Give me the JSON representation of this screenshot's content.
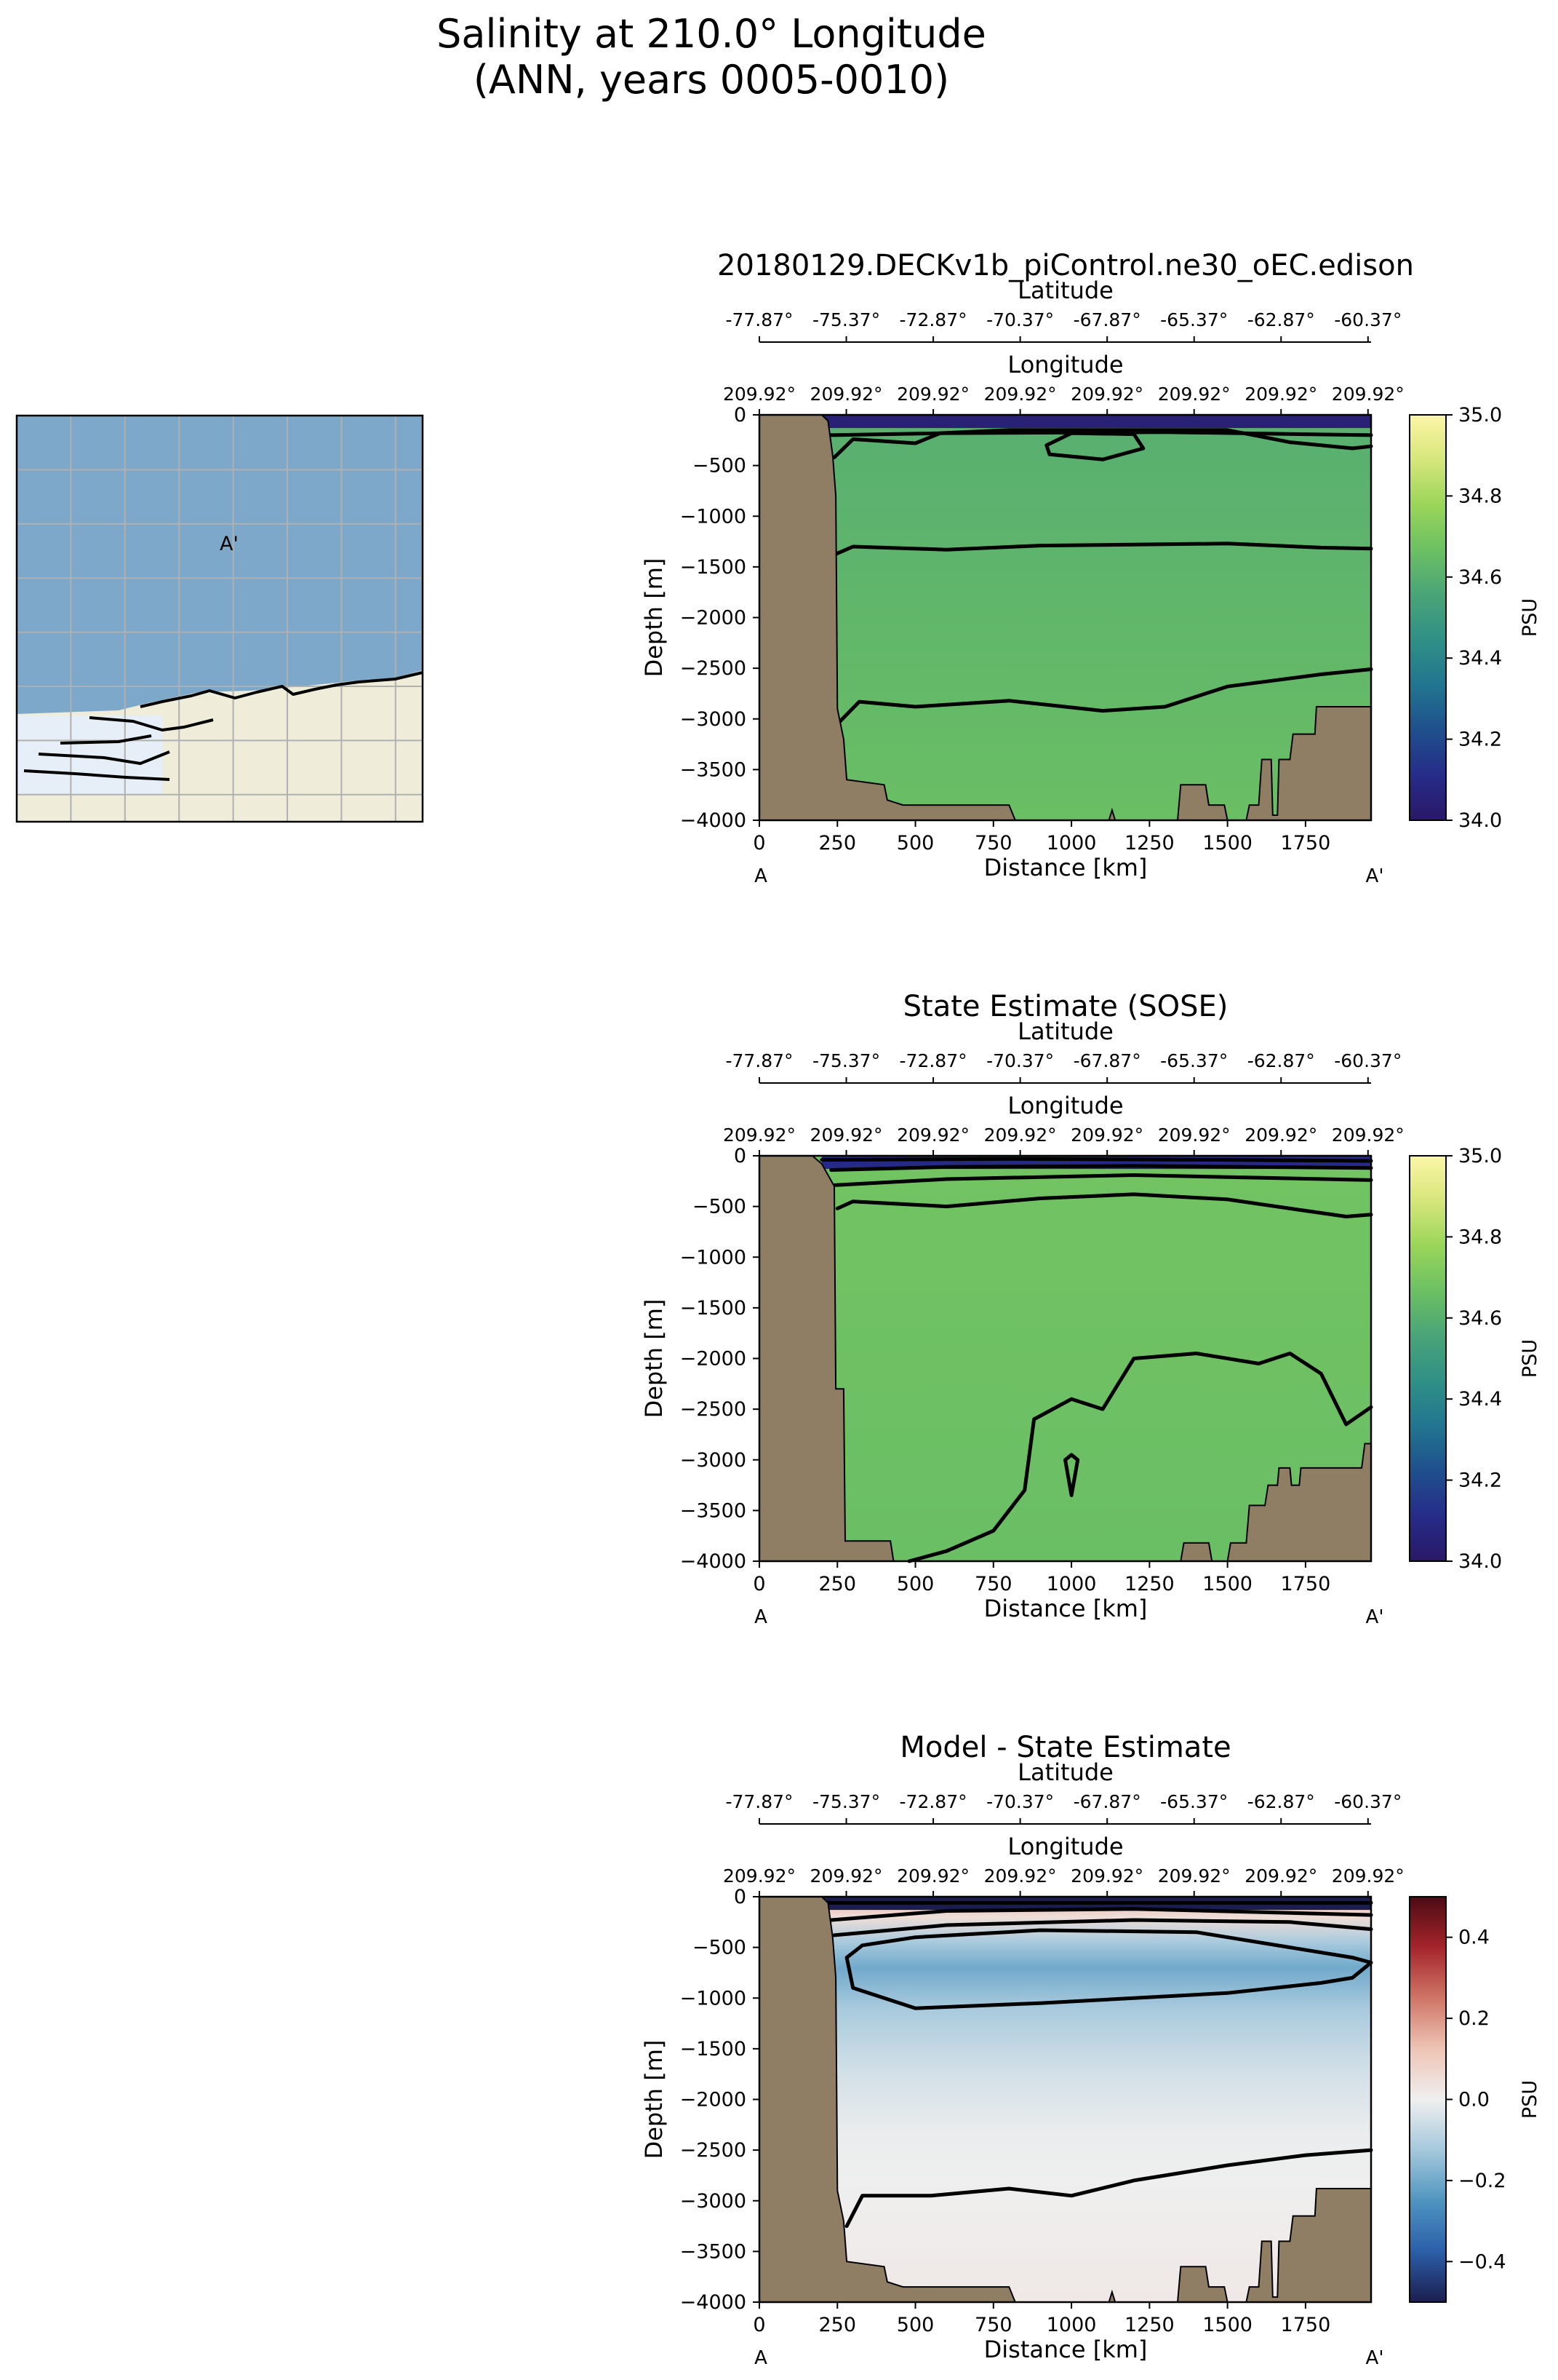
{
  "figure": {
    "suptitle_line1": "Salinity at 210.0° Longitude",
    "suptitle_line2": "(ANN, years 0005-0010)"
  },
  "inset_map": {
    "marker_label": "A'",
    "colors": {
      "ocean": "#7ea8c9",
      "land": "#efedda",
      "ice": "#e6eef8",
      "grid": "#b0b0b0"
    }
  },
  "colors": {
    "land_mask": "#8f7d64",
    "salinity_cmap": [
      "#2a1866",
      "#262c89",
      "#1f4f8c",
      "#227590",
      "#2f9086",
      "#4aa478",
      "#6cc063",
      "#9ad55a",
      "#d6e67a",
      "#fdf6a8"
    ],
    "diff_cmap": [
      "#1b1d4e",
      "#2b5fa8",
      "#4f95c0",
      "#a5c8dc",
      "#efefef",
      "#eec4b5",
      "#cf7566",
      "#a5252c",
      "#4d0a14"
    ]
  },
  "chart_data": [
    {
      "type": "heatmap",
      "title": "20180129.DECKv1b_piControl.ne30_oEC.edison",
      "xlabel": "Distance [km]",
      "ylabel": "Depth [m]",
      "top_axis_1_label": "Latitude",
      "top_axis_2_label": "Longitude",
      "colorbar_label": "PSU",
      "xlim": [
        0,
        1960
      ],
      "ylim": [
        -4000,
        0
      ],
      "x_ticks": [
        "0",
        "250",
        "500",
        "750",
        "1000",
        "1250",
        "1500",
        "1750"
      ],
      "y_ticks": [
        "0",
        "−500",
        "−1000",
        "−1500",
        "−2000",
        "−2500",
        "−3000",
        "−3500",
        "−4000"
      ],
      "latitude_ticks": [
        "-77.87°",
        "-75.37°",
        "-72.87°",
        "-70.37°",
        "-67.87°",
        "-65.37°",
        "-62.87°",
        "-60.37°"
      ],
      "longitude_ticks": [
        "209.92°",
        "209.92°",
        "209.92°",
        "209.92°",
        "209.92°",
        "209.92°",
        "209.92°",
        "209.92°"
      ],
      "endpoint_left": "A",
      "endpoint_right": "A'",
      "colorbar_range": [
        34.0,
        35.0
      ],
      "colorbar_ticks": [
        "34.0",
        "34.2",
        "34.4",
        "34.6",
        "34.8",
        "35.0"
      ],
      "fill_top": 34.6,
      "fill_bottom": 34.66,
      "surface_value": 34.05,
      "contours": [
        [
          [
            220,
            -200
          ],
          [
            600,
            -180
          ],
          [
            1300,
            -170
          ],
          [
            1960,
            -200
          ]
        ],
        [
          [
            240,
            -420
          ],
          [
            300,
            -240
          ],
          [
            500,
            -280
          ],
          [
            580,
            -180
          ],
          [
            800,
            -150
          ],
          [
            1500,
            -150
          ],
          [
            1700,
            -270
          ],
          [
            1900,
            -330
          ],
          [
            1960,
            -310
          ]
        ],
        [
          [
            920,
            -300
          ],
          [
            1000,
            -180
          ],
          [
            1200,
            -190
          ],
          [
            1230,
            -330
          ],
          [
            1100,
            -440
          ],
          [
            930,
            -390
          ],
          [
            920,
            -300
          ]
        ],
        [
          [
            240,
            -1380
          ],
          [
            300,
            -1300
          ],
          [
            600,
            -1330
          ],
          [
            900,
            -1290
          ],
          [
            1500,
            -1270
          ],
          [
            1800,
            -1310
          ],
          [
            1960,
            -1320
          ]
        ],
        [
          [
            250,
            -3050
          ],
          [
            320,
            -2830
          ],
          [
            500,
            -2880
          ],
          [
            800,
            -2820
          ],
          [
            1100,
            -2920
          ],
          [
            1300,
            -2880
          ],
          [
            1500,
            -2680
          ],
          [
            1800,
            -2560
          ],
          [
            1960,
            -2510
          ]
        ]
      ],
      "bathymetry": [
        [
          0,
          0
        ],
        [
          200,
          0
        ],
        [
          220,
          -60
        ],
        [
          235,
          -400
        ],
        [
          245,
          -800
        ],
        [
          250,
          -2900
        ],
        [
          270,
          -3200
        ],
        [
          280,
          -3600
        ],
        [
          400,
          -3650
        ],
        [
          410,
          -3800
        ],
        [
          460,
          -3850
        ],
        [
          800,
          -3850
        ],
        [
          820,
          -4000
        ],
        [
          1120,
          -4000
        ],
        [
          1130,
          -3900
        ],
        [
          1140,
          -4000
        ],
        [
          1340,
          -4000
        ],
        [
          1350,
          -3650
        ],
        [
          1430,
          -3650
        ],
        [
          1440,
          -3850
        ],
        [
          1490,
          -3850
        ],
        [
          1500,
          -4000
        ],
        [
          1560,
          -4000
        ],
        [
          1570,
          -3850
        ],
        [
          1600,
          -3850
        ],
        [
          1610,
          -3400
        ],
        [
          1640,
          -3400
        ],
        [
          1645,
          -3950
        ],
        [
          1660,
          -3950
        ],
        [
          1665,
          -3400
        ],
        [
          1700,
          -3400
        ],
        [
          1710,
          -3150
        ],
        [
          1780,
          -3150
        ],
        [
          1785,
          -2880
        ],
        [
          1960,
          -2880
        ],
        [
          1960,
          -4000
        ],
        [
          0,
          -4000
        ]
      ]
    },
    {
      "type": "heatmap",
      "title": "State Estimate (SOSE)",
      "xlabel": "Distance [km]",
      "ylabel": "Depth [m]",
      "top_axis_1_label": "Latitude",
      "top_axis_2_label": "Longitude",
      "colorbar_label": "PSU",
      "xlim": [
        0,
        1960
      ],
      "ylim": [
        -4000,
        0
      ],
      "x_ticks": [
        "0",
        "250",
        "500",
        "750",
        "1000",
        "1250",
        "1500",
        "1750"
      ],
      "y_ticks": [
        "0",
        "−500",
        "−1000",
        "−1500",
        "−2000",
        "−2500",
        "−3000",
        "−3500",
        "−4000"
      ],
      "latitude_ticks": [
        "-77.87°",
        "-75.37°",
        "-72.87°",
        "-70.37°",
        "-67.87°",
        "-65.37°",
        "-62.87°",
        "-60.37°"
      ],
      "longitude_ticks": [
        "209.92°",
        "209.92°",
        "209.92°",
        "209.92°",
        "209.92°",
        "209.92°",
        "209.92°",
        "209.92°"
      ],
      "endpoint_left": "A",
      "endpoint_right": "A'",
      "colorbar_range": [
        34.0,
        35.0
      ],
      "colorbar_ticks": [
        "34.0",
        "34.2",
        "34.4",
        "34.6",
        "34.8",
        "35.0"
      ],
      "fill_top": 34.68,
      "fill_bottom": 34.66,
      "surface_value": 34.1,
      "contours": [
        [
          [
            200,
            -40
          ],
          [
            800,
            -30
          ],
          [
            1500,
            -40
          ],
          [
            1960,
            -50
          ]
        ],
        [
          [
            230,
            -140
          ],
          [
            600,
            -110
          ],
          [
            1200,
            -100
          ],
          [
            1960,
            -120
          ]
        ],
        [
          [
            240,
            -290
          ],
          [
            600,
            -230
          ],
          [
            1200,
            -190
          ],
          [
            1960,
            -240
          ]
        ],
        [
          [
            250,
            -520
          ],
          [
            300,
            -450
          ],
          [
            600,
            -500
          ],
          [
            900,
            -420
          ],
          [
            1200,
            -380
          ],
          [
            1500,
            -430
          ],
          [
            1700,
            -520
          ],
          [
            1880,
            -600
          ],
          [
            1960,
            -580
          ]
        ],
        [
          [
            480,
            -4000
          ],
          [
            600,
            -3900
          ],
          [
            750,
            -3700
          ],
          [
            850,
            -3300
          ],
          [
            880,
            -2600
          ],
          [
            1000,
            -2400
          ],
          [
            1100,
            -2500
          ],
          [
            1160,
            -2200
          ],
          [
            1200,
            -2000
          ],
          [
            1400,
            -1950
          ],
          [
            1600,
            -2050
          ],
          [
            1700,
            -1950
          ],
          [
            1800,
            -2150
          ],
          [
            1880,
            -2650
          ],
          [
            1960,
            -2480
          ]
        ],
        [
          [
            980,
            -3000
          ],
          [
            1000,
            -3350
          ],
          [
            1020,
            -3000
          ],
          [
            1000,
            -2950
          ],
          [
            980,
            -3000
          ]
        ]
      ],
      "bathymetry": [
        [
          0,
          0
        ],
        [
          170,
          0
        ],
        [
          200,
          -80
        ],
        [
          240,
          -300
        ],
        [
          245,
          -2300
        ],
        [
          270,
          -2300
        ],
        [
          275,
          -3800
        ],
        [
          420,
          -3800
        ],
        [
          430,
          -4000
        ],
        [
          1350,
          -4000
        ],
        [
          1360,
          -3820
        ],
        [
          1440,
          -3820
        ],
        [
          1450,
          -4000
        ],
        [
          1500,
          -4000
        ],
        [
          1510,
          -3820
        ],
        [
          1560,
          -3820
        ],
        [
          1570,
          -3450
        ],
        [
          1620,
          -3450
        ],
        [
          1630,
          -3250
        ],
        [
          1660,
          -3250
        ],
        [
          1665,
          -3080
        ],
        [
          1700,
          -3080
        ],
        [
          1705,
          -3250
        ],
        [
          1730,
          -3250
        ],
        [
          1735,
          -3080
        ],
        [
          1930,
          -3080
        ],
        [
          1940,
          -2840
        ],
        [
          1960,
          -2840
        ],
        [
          1960,
          -4000
        ],
        [
          0,
          -4000
        ]
      ]
    },
    {
      "type": "heatmap",
      "title": "Model - State Estimate",
      "xlabel": "Distance [km]",
      "ylabel": "Depth [m]",
      "top_axis_1_label": "Latitude",
      "top_axis_2_label": "Longitude",
      "colorbar_label": "PSU",
      "xlim": [
        0,
        1960
      ],
      "ylim": [
        -4000,
        0
      ],
      "x_ticks": [
        "0",
        "250",
        "500",
        "750",
        "1000",
        "1250",
        "1500",
        "1750"
      ],
      "y_ticks": [
        "0",
        "−500",
        "−1000",
        "−1500",
        "−2000",
        "−2500",
        "−3000",
        "−3500",
        "−4000"
      ],
      "latitude_ticks": [
        "-77.87°",
        "-75.37°",
        "-72.87°",
        "-70.37°",
        "-67.87°",
        "-65.37°",
        "-62.87°",
        "-60.37°"
      ],
      "longitude_ticks": [
        "209.92°",
        "209.92°",
        "209.92°",
        "209.92°",
        "209.92°",
        "209.92°",
        "209.92°",
        "209.92°"
      ],
      "endpoint_left": "A",
      "endpoint_right": "A'",
      "colorbar_range": [
        -0.5,
        0.5
      ],
      "colorbar_ticks": [
        "−0.4",
        "−0.2",
        "0.0",
        "0.2",
        "0.4"
      ],
      "depth_profile": [
        [
          0,
          0.15
        ],
        [
          -200,
          0.05
        ],
        [
          -450,
          -0.12
        ],
        [
          -700,
          -0.2
        ],
        [
          -1100,
          -0.12
        ],
        [
          -1700,
          -0.05
        ],
        [
          -2300,
          -0.01
        ],
        [
          -2800,
          0.0
        ],
        [
          -4000,
          0.02
        ]
      ],
      "surface_value": -0.5,
      "contours": [
        [
          [
            200,
            -60
          ],
          [
            1960,
            -60
          ]
        ],
        [
          [
            230,
            -230
          ],
          [
            600,
            -140
          ],
          [
            1200,
            -120
          ],
          [
            1960,
            -180
          ]
        ],
        [
          [
            240,
            -380
          ],
          [
            600,
            -280
          ],
          [
            1200,
            -230
          ],
          [
            1700,
            -250
          ],
          [
            1960,
            -320
          ]
        ],
        [
          [
            280,
            -600
          ],
          [
            300,
            -900
          ],
          [
            500,
            -1100
          ],
          [
            900,
            -1050
          ],
          [
            1500,
            -950
          ],
          [
            1800,
            -850
          ],
          [
            1900,
            -800
          ],
          [
            1960,
            -650
          ],
          [
            1900,
            -600
          ],
          [
            1700,
            -500
          ],
          [
            1400,
            -350
          ],
          [
            900,
            -330
          ],
          [
            500,
            -400
          ],
          [
            330,
            -480
          ],
          [
            280,
            -600
          ]
        ],
        [
          [
            280,
            -3250
          ],
          [
            330,
            -2950
          ],
          [
            550,
            -2950
          ],
          [
            800,
            -2880
          ],
          [
            1000,
            -2950
          ],
          [
            1200,
            -2800
          ],
          [
            1500,
            -2650
          ],
          [
            1750,
            -2550
          ],
          [
            1960,
            -2500
          ]
        ]
      ],
      "bathymetry": [
        [
          0,
          0
        ],
        [
          200,
          0
        ],
        [
          220,
          -60
        ],
        [
          235,
          -400
        ],
        [
          245,
          -800
        ],
        [
          250,
          -2900
        ],
        [
          270,
          -3200
        ],
        [
          280,
          -3600
        ],
        [
          400,
          -3650
        ],
        [
          410,
          -3800
        ],
        [
          460,
          -3850
        ],
        [
          800,
          -3850
        ],
        [
          820,
          -4000
        ],
        [
          1120,
          -4000
        ],
        [
          1130,
          -3900
        ],
        [
          1140,
          -4000
        ],
        [
          1340,
          -4000
        ],
        [
          1350,
          -3650
        ],
        [
          1430,
          -3650
        ],
        [
          1440,
          -3850
        ],
        [
          1490,
          -3850
        ],
        [
          1500,
          -4000
        ],
        [
          1560,
          -4000
        ],
        [
          1570,
          -3850
        ],
        [
          1600,
          -3850
        ],
        [
          1610,
          -3400
        ],
        [
          1640,
          -3400
        ],
        [
          1645,
          -3950
        ],
        [
          1660,
          -3950
        ],
        [
          1665,
          -3400
        ],
        [
          1700,
          -3400
        ],
        [
          1710,
          -3150
        ],
        [
          1780,
          -3150
        ],
        [
          1785,
          -2880
        ],
        [
          1960,
          -2880
        ],
        [
          1960,
          -4000
        ],
        [
          0,
          -4000
        ]
      ]
    }
  ]
}
